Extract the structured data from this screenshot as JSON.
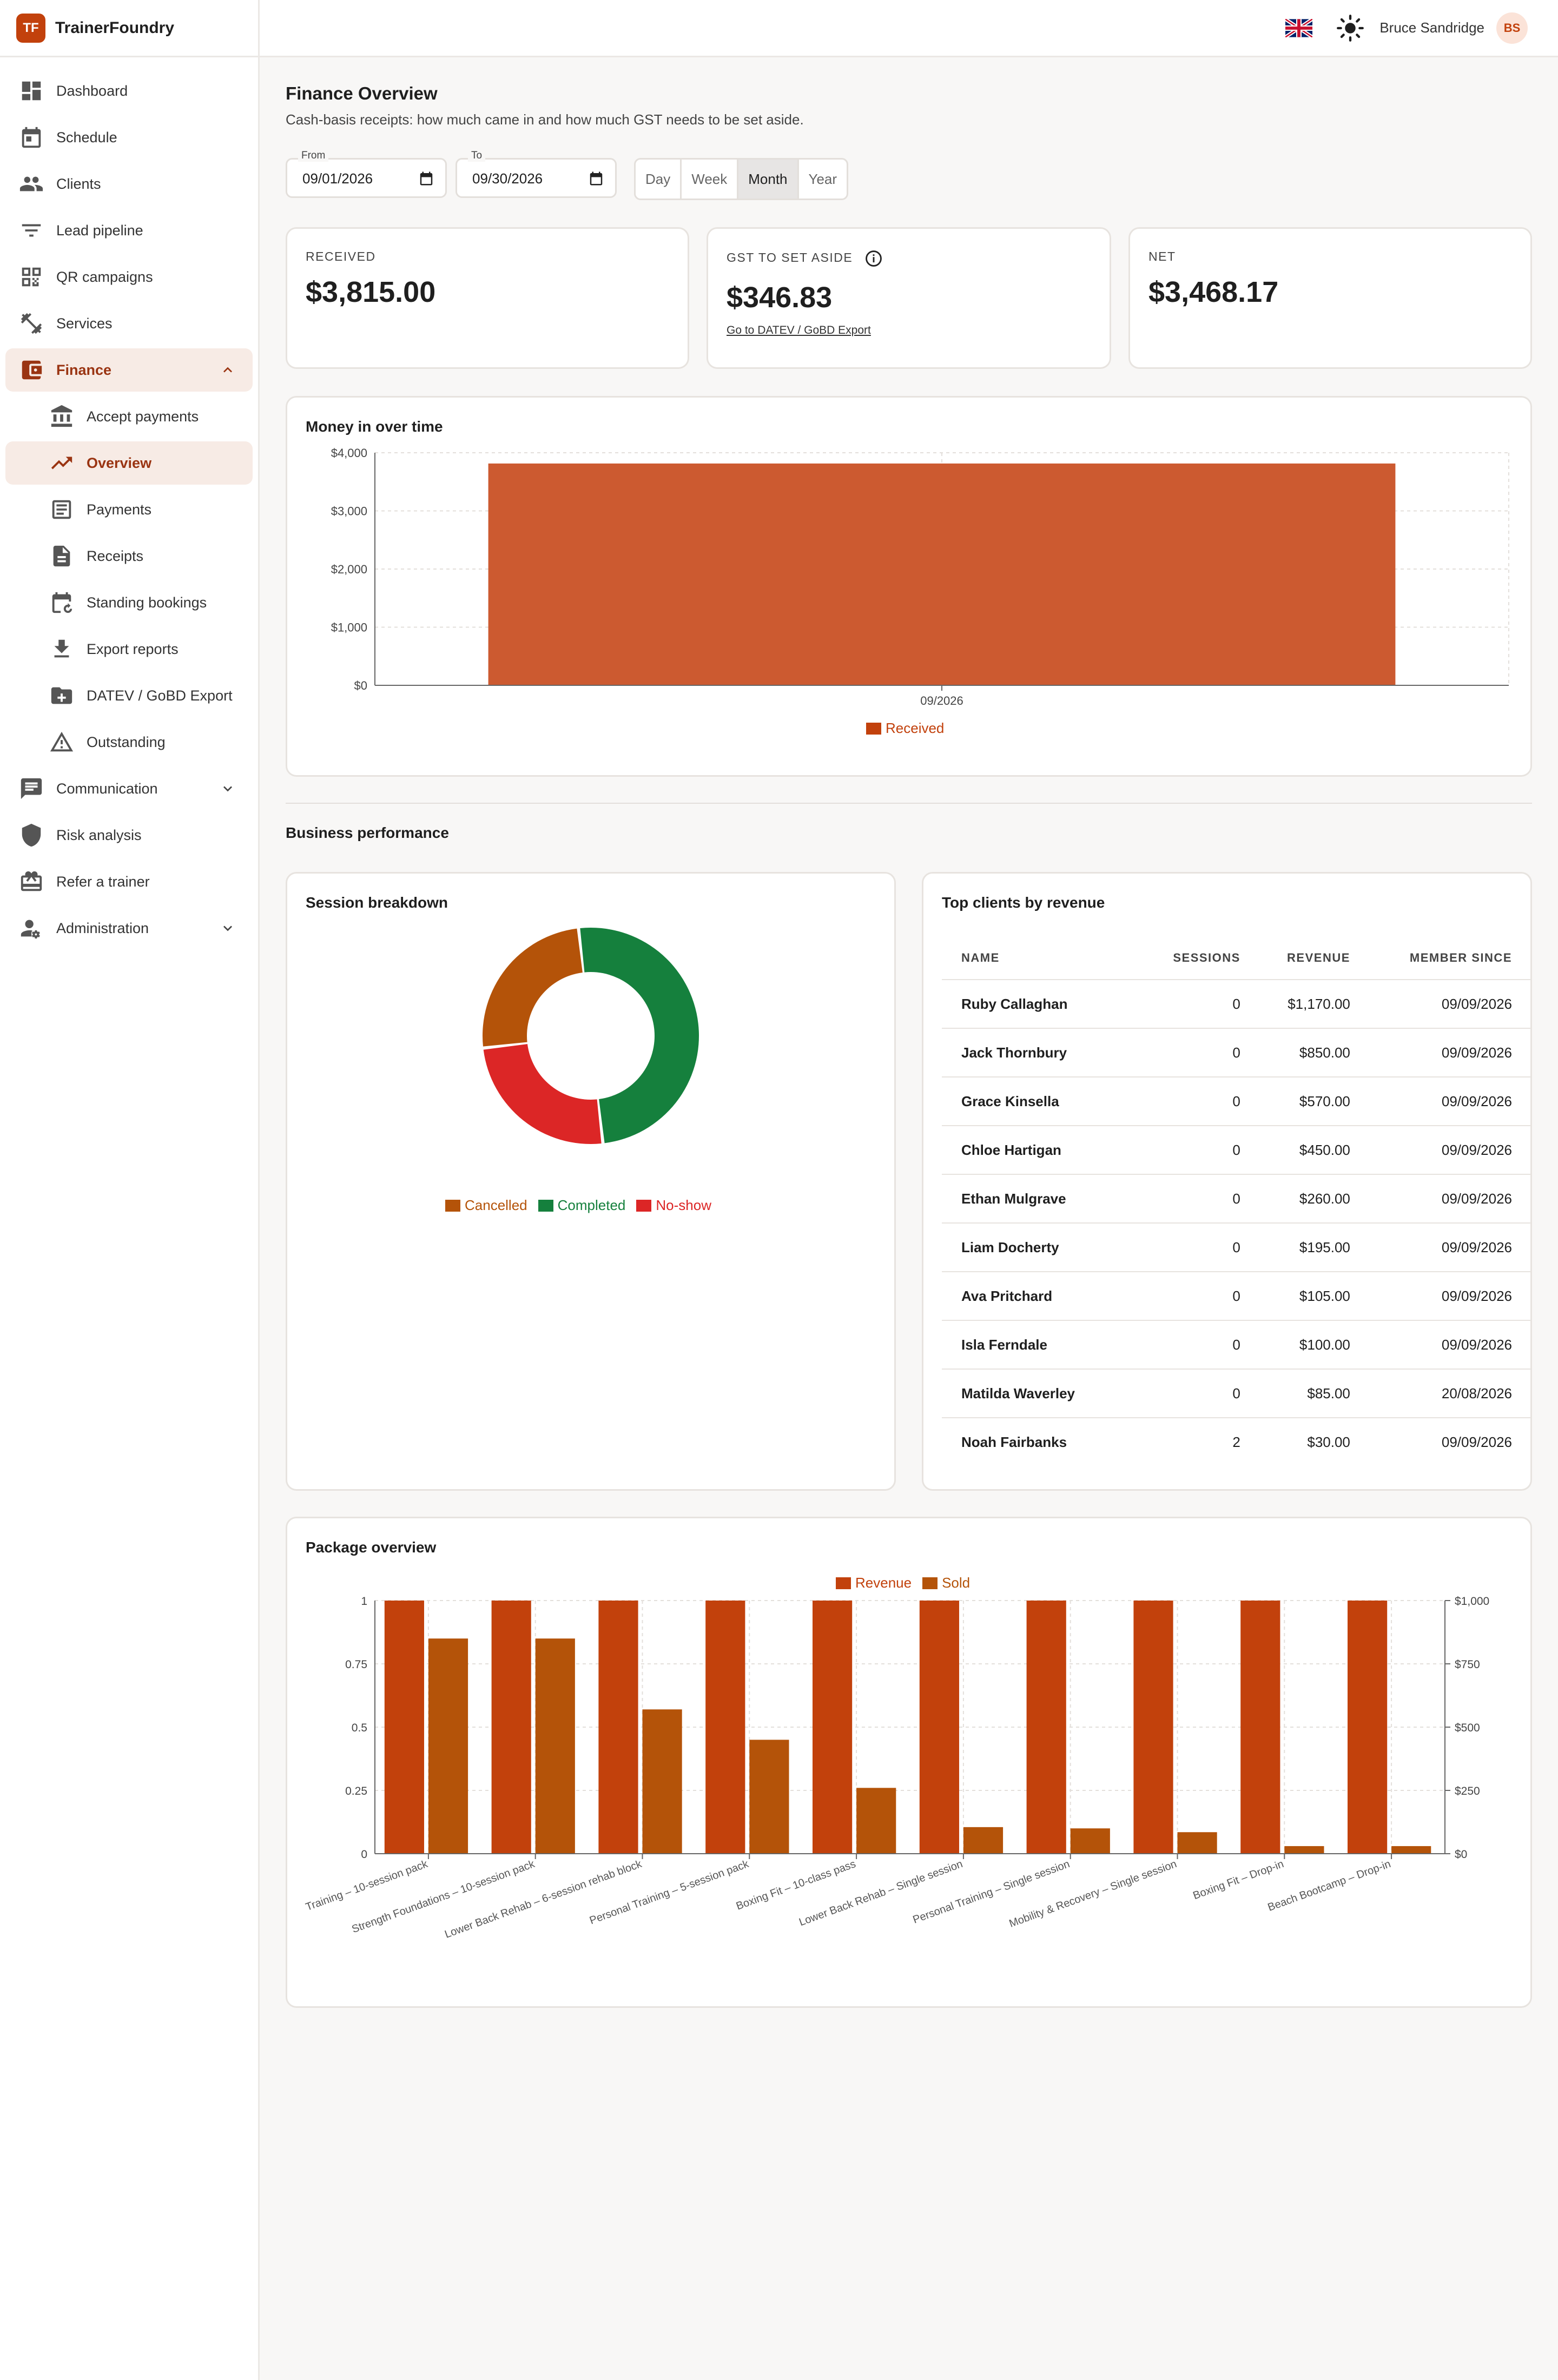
{
  "app": {
    "brand_initials": "TF",
    "brand_name": "TrainerFoundry"
  },
  "sidebar": {
    "items": [
      {
        "label": "Dashboard",
        "icon": "dashboard-icon"
      },
      {
        "label": "Schedule",
        "icon": "calendar-icon"
      },
      {
        "label": "Clients",
        "icon": "people-icon"
      },
      {
        "label": "Lead pipeline",
        "icon": "filter-icon"
      },
      {
        "label": "QR campaigns",
        "icon": "qr-code-icon"
      },
      {
        "label": "Services",
        "icon": "dumbbell-icon"
      },
      {
        "label": "Finance",
        "icon": "wallet-icon",
        "expanded": true
      },
      {
        "label": "Accept payments",
        "icon": "bank-icon"
      },
      {
        "label": "Overview",
        "icon": "trend-icon",
        "active": true
      },
      {
        "label": "Payments",
        "icon": "receipt-list-icon"
      },
      {
        "label": "Receipts",
        "icon": "document-icon"
      },
      {
        "label": "Standing bookings",
        "icon": "calendar-repeat-icon"
      },
      {
        "label": "Export reports",
        "icon": "download-icon"
      },
      {
        "label": "DATEV / GoBD Export",
        "icon": "folder-icon"
      },
      {
        "label": "Outstanding",
        "icon": "warning-icon"
      },
      {
        "label": "Communication",
        "icon": "chat-icon"
      },
      {
        "label": "Risk analysis",
        "icon": "shield-icon"
      },
      {
        "label": "Refer a trainer",
        "icon": "gift-icon"
      },
      {
        "label": "Administration",
        "icon": "admin-icon"
      }
    ]
  },
  "topbar": {
    "language_icon": "uk-flag-icon",
    "theme_icon": "sun-icon",
    "user_name": "Bruce Sandridge",
    "user_initials": "BS"
  },
  "page": {
    "title": "Finance Overview",
    "subtitle": "Cash-basis receipts: how much came in and how much GST needs to be set aside."
  },
  "filters": {
    "from_label": "From",
    "from_value": "09/01/2026",
    "to_label": "To",
    "to_value": "09/30/2026",
    "periods": [
      "Day",
      "Week",
      "Month",
      "Year"
    ],
    "selected_period": "Month"
  },
  "kpis": {
    "received_label": "RECEIVED",
    "received_value": "$3,815.00",
    "gst_label": "GST TO SET ASIDE",
    "gst_value": "$346.83",
    "gst_link": "Go to DATEV / GoBD Export",
    "net_label": "NET",
    "net_value": "$3,468.17"
  },
  "money_chart_title": "Money in over time",
  "performance_title": "Business performance",
  "session_title": "Session breakdown",
  "clients": {
    "title": "Top clients by revenue",
    "columns": [
      "NAME",
      "SESSIONS",
      "REVENUE",
      "MEMBER SINCE"
    ],
    "rows": [
      [
        "Ruby Callaghan",
        "0",
        "$1,170.00",
        "09/09/2026"
      ],
      [
        "Jack Thornbury",
        "0",
        "$850.00",
        "09/09/2026"
      ],
      [
        "Grace Kinsella",
        "0",
        "$570.00",
        "09/09/2026"
      ],
      [
        "Chloe Hartigan",
        "0",
        "$450.00",
        "09/09/2026"
      ],
      [
        "Ethan Mulgrave",
        "0",
        "$260.00",
        "09/09/2026"
      ],
      [
        "Liam Docherty",
        "0",
        "$195.00",
        "09/09/2026"
      ],
      [
        "Ava Pritchard",
        "0",
        "$105.00",
        "09/09/2026"
      ],
      [
        "Isla Ferndale",
        "0",
        "$100.00",
        "09/09/2026"
      ],
      [
        "Matilda Waverley",
        "0",
        "$85.00",
        "20/08/2026"
      ],
      [
        "Noah Fairbanks",
        "2",
        "$30.00",
        "09/09/2026"
      ]
    ]
  },
  "package_title": "Package overview",
  "colors": {
    "received": "#cc5a30",
    "revenue": "#c2410c",
    "sold": "#b45309",
    "cancelled": "#b45309",
    "completed": "#15803d",
    "noshow": "#dc2626"
  },
  "chart_data": [
    {
      "type": "bar",
      "title": "Money in over time",
      "categories": [
        "09/2026"
      ],
      "series": [
        {
          "name": "Received",
          "values": [
            3815
          ]
        }
      ],
      "ylim": [
        0,
        4000
      ],
      "yticks": [
        "$0",
        "$1,000",
        "$2,000",
        "$3,000",
        "$4,000"
      ],
      "ytick_values": [
        0,
        1000,
        2000,
        3000,
        4000
      ],
      "grid": true,
      "legend": "bottom"
    },
    {
      "type": "pie",
      "title": "Session breakdown",
      "donut": true,
      "categories": [
        "Cancelled",
        "Completed",
        "No-show"
      ],
      "values": [
        25,
        50,
        25
      ],
      "legend": "bottom"
    },
    {
      "type": "bar",
      "title": "Package overview",
      "categories": [
        "Training – 10-session pack",
        "Strength Foundations – 10-session pack",
        "Lower Back Rehab – 6-session rehab block",
        "Personal Training – 5-session pack",
        "Boxing Fit – 10-class pass",
        "Lower Back Rehab – Single session",
        "Personal Training – Single session",
        "Mobility & Recovery – Single session",
        "Boxing Fit – Drop-in",
        "Beach Bootcamp – Drop-in"
      ],
      "series": [
        {
          "name": "Revenue",
          "axis": "left",
          "values": [
            1,
            1,
            1,
            1,
            1,
            1,
            1,
            1,
            1,
            1
          ]
        },
        {
          "name": "Sold",
          "axis": "right",
          "values": [
            850,
            850,
            570,
            450,
            260,
            105,
            100,
            85,
            30,
            30
          ]
        }
      ],
      "ylim_left": [
        0,
        1
      ],
      "yticks_left": [
        "0",
        "0.25",
        "0.5",
        "0.75",
        "1"
      ],
      "ylim_right": [
        0,
        1000
      ],
      "yticks_right": [
        "$0",
        "$250",
        "$500",
        "$750",
        "$1,000"
      ],
      "grid": true,
      "legend": "top"
    }
  ]
}
